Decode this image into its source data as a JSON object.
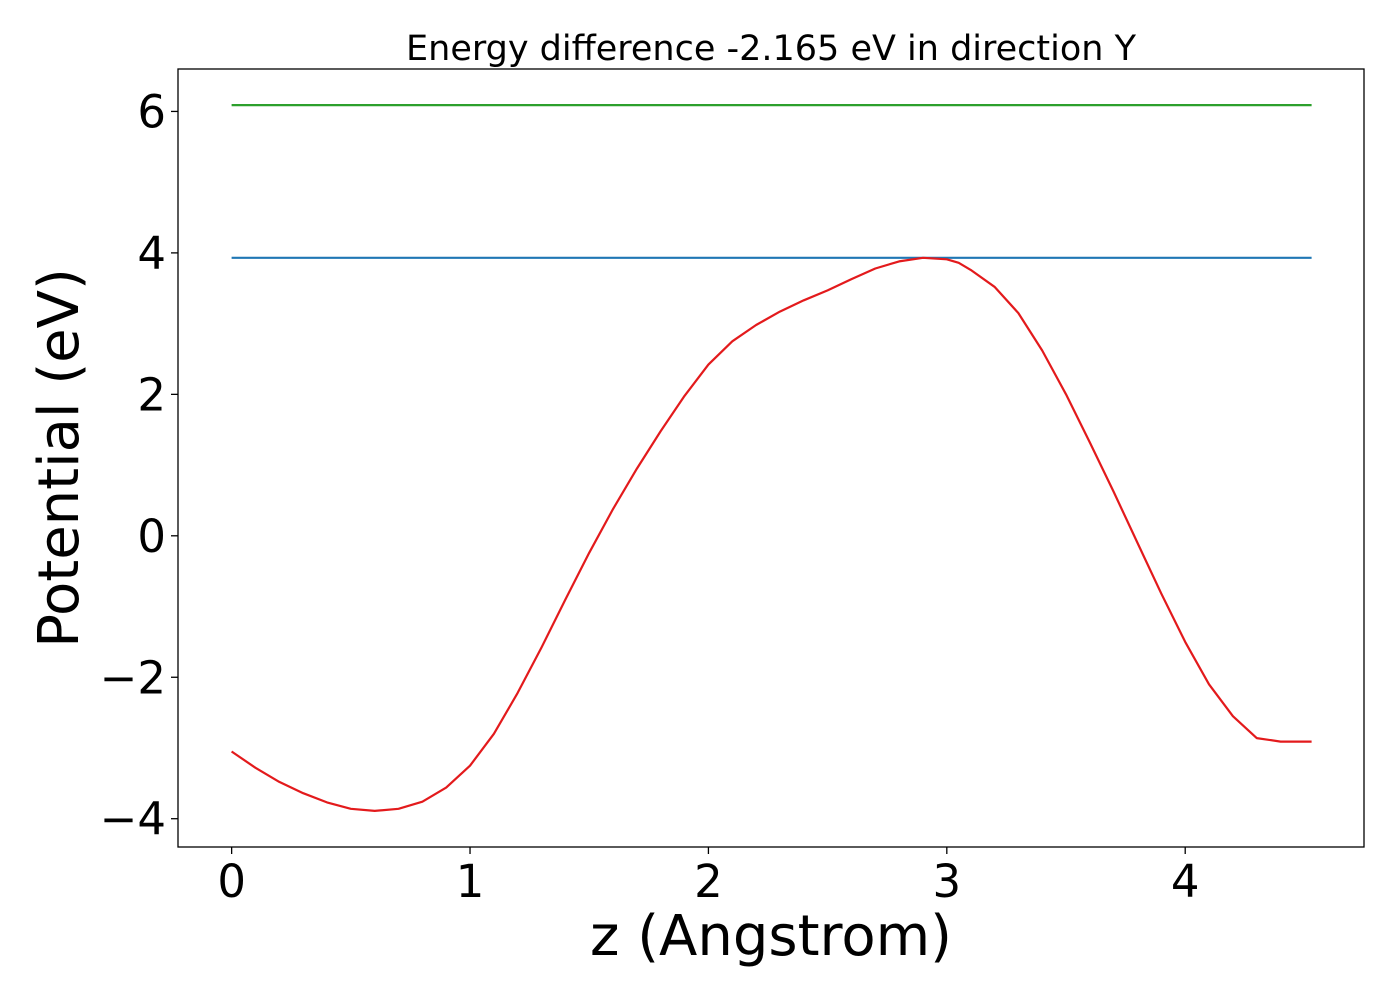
{
  "chart_data": {
    "type": "line",
    "title": "Energy difference -2.165 eV in direction Y",
    "xlabel": "z (Angstrom)",
    "ylabel": "Potential (eV)",
    "xlim": [
      -0.225,
      4.75
    ],
    "ylim": [
      -4.4,
      6.6
    ],
    "xticks": [
      0,
      1,
      2,
      3,
      4
    ],
    "xtick_labels": [
      "0",
      "1",
      "2",
      "3",
      "4"
    ],
    "yticks": [
      -4,
      -2,
      0,
      2,
      4,
      6
    ],
    "ytick_labels": [
      "−4",
      "−2",
      "0",
      "2",
      "4",
      "6"
    ],
    "grid": false,
    "series": [
      {
        "kind": "hline",
        "color": "#2ca02c",
        "y": 6.09,
        "x_range": [
          0,
          4.53
        ]
      },
      {
        "kind": "hline",
        "color": "#1f77b4",
        "y": 3.93,
        "x_range": [
          0,
          4.53
        ]
      },
      {
        "kind": "curve",
        "color": "#e31a1c",
        "x": [
          0,
          0.1,
          0.2,
          0.3,
          0.4,
          0.5,
          0.6,
          0.7,
          0.8,
          0.9,
          1.0,
          1.1,
          1.2,
          1.3,
          1.4,
          1.5,
          1.6,
          1.7,
          1.8,
          1.9,
          2.0,
          2.1,
          2.2,
          2.3,
          2.4,
          2.5,
          2.6,
          2.7,
          2.8,
          2.9,
          3.0,
          3.05,
          3.1,
          3.2,
          3.3,
          3.4,
          3.5,
          3.6,
          3.7,
          3.8,
          3.9,
          4.0,
          4.1,
          4.2,
          4.3,
          4.4,
          4.53
        ],
        "y": [
          -3.05,
          -3.28,
          -3.48,
          -3.64,
          -3.77,
          -3.86,
          -3.89,
          -3.86,
          -3.76,
          -3.56,
          -3.25,
          -2.8,
          -2.22,
          -1.58,
          -0.9,
          -0.24,
          0.38,
          0.95,
          1.48,
          1.98,
          2.42,
          2.75,
          2.98,
          3.17,
          3.33,
          3.47,
          3.63,
          3.78,
          3.88,
          3.93,
          3.91,
          3.86,
          3.76,
          3.52,
          3.15,
          2.62,
          2.0,
          1.32,
          0.62,
          -0.1,
          -0.82,
          -1.5,
          -2.1,
          -2.55,
          -2.86,
          -2.91,
          -2.91
        ]
      }
    ]
  }
}
